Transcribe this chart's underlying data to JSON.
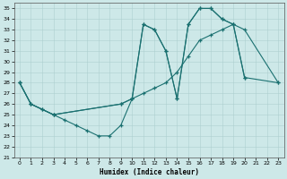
{
  "xlabel": "Humidex (Indice chaleur)",
  "xlim": [
    -0.5,
    23.5
  ],
  "ylim": [
    21,
    35.5
  ],
  "xticks": [
    0,
    1,
    2,
    3,
    4,
    5,
    6,
    7,
    8,
    9,
    10,
    11,
    12,
    13,
    14,
    15,
    16,
    17,
    18,
    19,
    20,
    21,
    22,
    23
  ],
  "yticks": [
    21,
    22,
    23,
    24,
    25,
    26,
    27,
    28,
    29,
    30,
    31,
    32,
    33,
    34,
    35
  ],
  "bg_color": "#cde8e8",
  "grid_color": "#b8d8d8",
  "line_color": "#1a7070",
  "line1_x": [
    0,
    1,
    2,
    3,
    4,
    5,
    6,
    7,
    8,
    9,
    10,
    11,
    12,
    13,
    14,
    15,
    16,
    17,
    18,
    19,
    20,
    23
  ],
  "line1_y": [
    28,
    26,
    25.5,
    25,
    24.5,
    24,
    23.5,
    23,
    23,
    24,
    26.5,
    27,
    27.5,
    28,
    29,
    30.5,
    32,
    32.5,
    33,
    33.5,
    33,
    28
  ],
  "line2_x": [
    0,
    1,
    3,
    9,
    10,
    11,
    12,
    13,
    14,
    15,
    16,
    17,
    18,
    19,
    20
  ],
  "line2_y": [
    28,
    26,
    25,
    26,
    26.5,
    33.5,
    33,
    31,
    26.5,
    33.5,
    35,
    35,
    34,
    33.5,
    28.5
  ],
  "line3_x": [
    0,
    1,
    2,
    3,
    9,
    10,
    11,
    12,
    13,
    14,
    15,
    16,
    17,
    18,
    19,
    20,
    23
  ],
  "line3_y": [
    28,
    26,
    25.5,
    25,
    26,
    26.5,
    33.5,
    33,
    31,
    26.5,
    33.5,
    35,
    35,
    34,
    33.5,
    28.5,
    28
  ]
}
